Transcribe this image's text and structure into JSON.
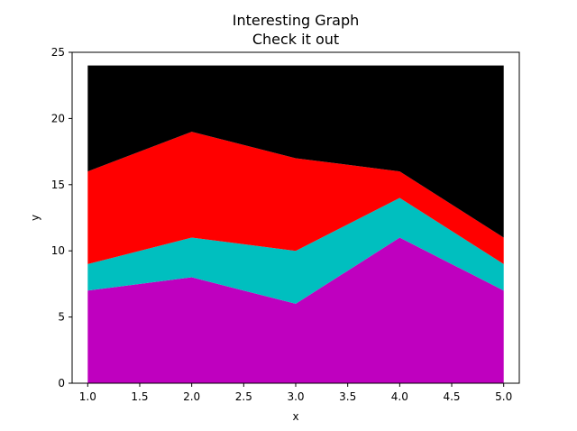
{
  "chart_data": {
    "type": "area",
    "stacked": true,
    "title": "Interesting Graph",
    "subtitle": "Check it out",
    "xlabel": "x",
    "ylabel": "y",
    "x": [
      1,
      2,
      3,
      4,
      5
    ],
    "xlim": [
      0.85,
      5.15
    ],
    "ylim": [
      0,
      25
    ],
    "xticks": [
      "1.0",
      "1.5",
      "2.0",
      "2.5",
      "3.0",
      "3.5",
      "4.0",
      "4.5",
      "5.0"
    ],
    "xtick_values": [
      1.0,
      1.5,
      2.0,
      2.5,
      3.0,
      3.5,
      4.0,
      4.5,
      5.0
    ],
    "yticks": [
      "0",
      "5",
      "10",
      "15",
      "20",
      "25"
    ],
    "ytick_values": [
      0,
      5,
      10,
      15,
      20,
      25
    ],
    "grid": false,
    "legend": "none",
    "series": [
      {
        "values": [
          7,
          8,
          6,
          11,
          7
        ],
        "color": "#bf00bf"
      },
      {
        "values": [
          2,
          3,
          4,
          3,
          2
        ],
        "color": "#00bfbf"
      },
      {
        "values": [
          7,
          8,
          7,
          2,
          2
        ],
        "color": "#ff0000"
      },
      {
        "values": [
          8,
          5,
          7,
          8,
          13
        ],
        "color": "#000000"
      }
    ]
  }
}
